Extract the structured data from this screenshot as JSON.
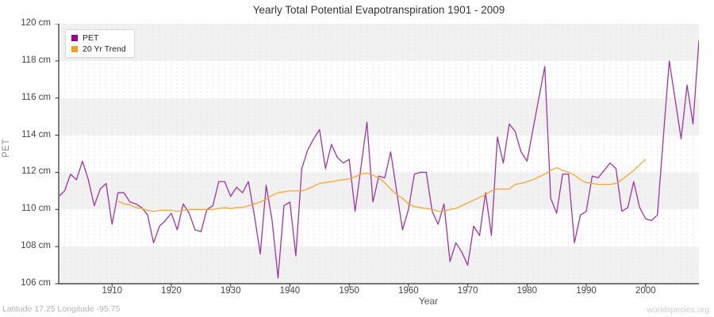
{
  "chart_data": {
    "type": "line",
    "title": "Yearly Total Potential Evapotranspiration 1901 - 2009",
    "xlabel": "Year",
    "ylabel": "PET",
    "y_unit": "cm",
    "xlim": [
      1901,
      2009
    ],
    "ylim": [
      106,
      120
    ],
    "x_ticks": [
      1910,
      1920,
      1930,
      1940,
      1950,
      1960,
      1970,
      1980,
      1990,
      2000
    ],
    "y_tick_labels": [
      "120 cm",
      "118 cm",
      "116 cm",
      "114 cm",
      "112 cm",
      "110 cm",
      "108 cm",
      "106 cm"
    ],
    "grid": "yearly dashed vertical gridlines; alternating horizontal shaded bands every 2 cm",
    "legend_position": "top-left",
    "series": [
      {
        "name": "PET",
        "color": "#A333A3",
        "swatch_color": "#990099",
        "x_start": 1901,
        "x_step": 1,
        "values": [
          110.7,
          111.0,
          111.9,
          111.6,
          112.6,
          111.6,
          110.2,
          111.1,
          111.4,
          109.2,
          110.9,
          110.9,
          110.4,
          110.3,
          110.1,
          109.7,
          108.2,
          109.1,
          109.4,
          109.8,
          108.9,
          110.3,
          109.8,
          108.9,
          108.8,
          110.0,
          110.2,
          111.5,
          111.5,
          110.7,
          111.2,
          110.9,
          111.5,
          109.7,
          107.6,
          111.3,
          109.4,
          106.3,
          110.2,
          110.4,
          107.5,
          112.2,
          113.2,
          113.8,
          114.3,
          112.2,
          113.5,
          112.8,
          112.5,
          112.7,
          109.9,
          112.3,
          114.7,
          110.4,
          111.8,
          111.7,
          113.1,
          111.0,
          108.9,
          110.0,
          111.9,
          112.0,
          112.0,
          109.9,
          109.2,
          110.3,
          107.2,
          108.2,
          107.7,
          107.0,
          109.1,
          108.6,
          110.9,
          108.6,
          113.9,
          112.5,
          114.6,
          114.2,
          113.1,
          112.6,
          114.3,
          116.0,
          117.7,
          110.6,
          109.8,
          111.9,
          111.9,
          108.2,
          109.7,
          109.9,
          111.8,
          111.7,
          112.1,
          112.5,
          112.2,
          109.9,
          110.1,
          111.5,
          110.1,
          109.5,
          109.4,
          109.7,
          113.9,
          118.0,
          115.9,
          113.8,
          116.7,
          114.6,
          119.1
        ]
      },
      {
        "name": "20 Yr Trend",
        "color": "#FFA428",
        "swatch_color": "#FF9E1B",
        "x_start": 1911,
        "x_step": 1,
        "values": [
          110.45,
          110.3,
          110.25,
          110.1,
          110.05,
          109.95,
          109.9,
          109.95,
          109.95,
          109.95,
          109.9,
          109.95,
          110.0,
          110.0,
          110.0,
          110.0,
          110.0,
          110.05,
          110.1,
          110.05,
          110.1,
          110.1,
          110.2,
          110.3,
          110.4,
          110.55,
          110.75,
          110.9,
          110.95,
          111.0,
          111.0,
          111.0,
          111.1,
          111.25,
          111.4,
          111.45,
          111.5,
          111.55,
          111.6,
          111.65,
          111.75,
          111.9,
          111.95,
          111.85,
          111.7,
          111.45,
          111.1,
          110.8,
          110.6,
          110.3,
          110.15,
          110.1,
          110.05,
          110.0,
          109.9,
          109.9,
          110.0,
          110.05,
          110.2,
          110.35,
          110.5,
          110.65,
          110.8,
          111.0,
          111.1,
          111.1,
          111.1,
          111.35,
          111.4,
          111.5,
          111.6,
          111.75,
          111.9,
          112.1,
          112.25,
          112.1,
          112.0,
          111.85,
          111.6,
          111.45,
          111.4,
          111.35,
          111.35,
          111.35,
          111.4,
          111.6,
          111.85,
          112.1,
          112.4,
          112.7
        ]
      }
    ],
    "style": {
      "band_color": "#f1f1f1",
      "gridline_color": "#e6e6e6",
      "spine_color": "#2b2b2b",
      "tick_label_color": "#444444",
      "title_color": "#333333"
    }
  },
  "footer": {
    "subtitle": "Latitude 17.25 Longitude -95.75",
    "watermark": "worldspecies.org"
  }
}
